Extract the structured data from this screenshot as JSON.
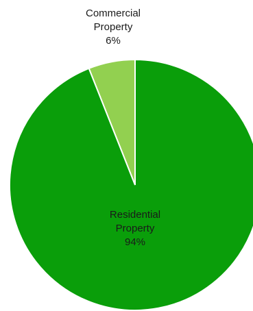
{
  "chart_data": {
    "type": "pie",
    "title": "",
    "slices": [
      {
        "label_lines": [
          "Commercial",
          "Property"
        ],
        "value": 6,
        "percent_label": "6%",
        "color": "#92d050"
      },
      {
        "label_lines": [
          "Residential",
          "Property"
        ],
        "value": 94,
        "percent_label": "94%",
        "color": "#0a9e0a"
      }
    ]
  }
}
